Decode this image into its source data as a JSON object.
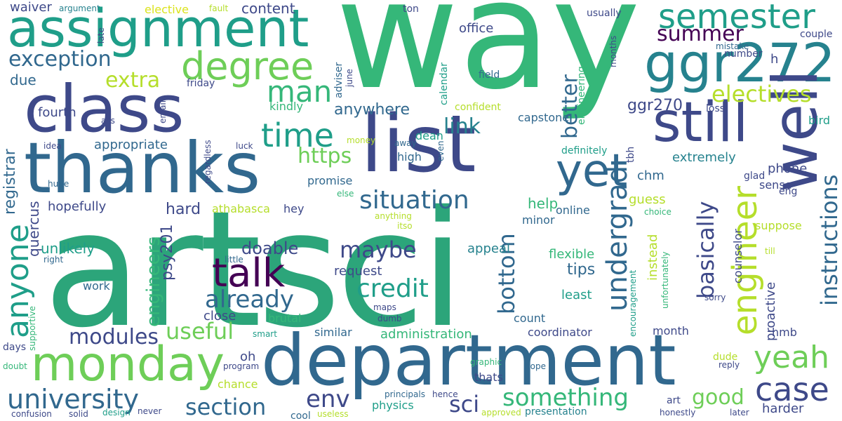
{
  "palette": {
    "dark_purple": "#440154",
    "indigo": "#3e4989",
    "blue": "#31688e",
    "teal": "#26828e",
    "green_teal": "#1f9e89",
    "green": "#35b779",
    "light_green": "#6ece58",
    "lime": "#b5de2b",
    "yellow": "#dbe31d"
  },
  "words": [
    {
      "text": "artsci",
      "color": "#2ca57a"
    },
    {
      "text": "way",
      "color": "#35b779"
    },
    {
      "text": "department",
      "color": "#31688e"
    },
    {
      "text": "thanks",
      "color": "#31688e"
    },
    {
      "text": "list",
      "color": "#3e4989"
    },
    {
      "text": "class",
      "color": "#3e4989"
    },
    {
      "text": "assignment",
      "color": "#1f9e89"
    },
    {
      "text": "ggr272",
      "color": "#26828e"
    },
    {
      "text": "still",
      "color": "#3e4989"
    },
    {
      "text": "monday",
      "color": "#6ece58"
    },
    {
      "text": "well",
      "color": "#3e4989"
    },
    {
      "text": "degree",
      "color": "#6ece58"
    },
    {
      "text": "talk",
      "color": "#440154"
    },
    {
      "text": "yet",
      "color": "#31688e"
    },
    {
      "text": "semester",
      "color": "#1f9e89"
    },
    {
      "text": "anyone",
      "color": "#1f9e89"
    },
    {
      "text": "engineer",
      "color": "#b5de2b"
    },
    {
      "text": "time",
      "color": "#1f9e89"
    },
    {
      "text": "man",
      "color": "#35b779"
    },
    {
      "text": "university",
      "color": "#31688e"
    },
    {
      "text": "exception",
      "color": "#31688e"
    },
    {
      "text": "case",
      "color": "#3e4989"
    },
    {
      "text": "yeah",
      "color": "#6ece58"
    },
    {
      "text": "summer",
      "color": "#440154"
    },
    {
      "text": "situation",
      "color": "#31688e"
    },
    {
      "text": "maybe",
      "color": "#3e4989"
    },
    {
      "text": "section",
      "color": "#31688e"
    },
    {
      "text": "useful",
      "color": "#6ece58"
    },
    {
      "text": "undergrad",
      "color": "#31688e"
    },
    {
      "text": "credit",
      "color": "#1f9e89"
    },
    {
      "text": "already",
      "color": "#31688e"
    },
    {
      "text": "modules",
      "color": "#3e4989"
    },
    {
      "text": "something",
      "color": "#35b779"
    },
    {
      "text": "sci",
      "color": "#3e4989"
    },
    {
      "text": "env",
      "color": "#3e4989"
    },
    {
      "text": "good",
      "color": "#6ece58"
    },
    {
      "text": "instructions",
      "color": "#31688e"
    },
    {
      "text": "electives",
      "color": "#b5de2b"
    },
    {
      "text": "extra",
      "color": "#b5de2b"
    },
    {
      "text": "better",
      "color": "#31688e"
    },
    {
      "text": "https",
      "color": "#6ece58"
    },
    {
      "text": "bottom",
      "color": "#31688e"
    },
    {
      "text": "basically",
      "color": "#3e4989"
    },
    {
      "text": "link",
      "color": "#26828e"
    },
    {
      "text": "anywhere",
      "color": "#31688e"
    },
    {
      "text": "ggr270",
      "color": "#3e4989"
    },
    {
      "text": "engineers",
      "color": "#35b779"
    },
    {
      "text": "psy201",
      "color": "#3e4989"
    },
    {
      "text": "office",
      "color": "#3e4989"
    },
    {
      "text": "content",
      "color": "#3e4989"
    },
    {
      "text": "due",
      "color": "#31688e"
    },
    {
      "text": "registrar",
      "color": "#31688e"
    },
    {
      "text": "fourth",
      "color": "#3e4989"
    },
    {
      "text": "appropriate",
      "color": "#31688e"
    },
    {
      "text": "waiver",
      "color": "#3e4989"
    },
    {
      "text": "hopefully",
      "color": "#3e4989"
    },
    {
      "text": "quercus",
      "color": "#3e4989"
    },
    {
      "text": "unlikely",
      "color": "#1f9e89"
    },
    {
      "text": "hard",
      "color": "#3e4989"
    },
    {
      "text": "athabasca",
      "color": "#b5de2b"
    },
    {
      "text": "hey",
      "color": "#3e4989"
    },
    {
      "text": "doable",
      "color": "#3e4989"
    },
    {
      "text": "promise",
      "color": "#31688e"
    },
    {
      "text": "help",
      "color": "#35b779"
    },
    {
      "text": "minor",
      "color": "#31688e"
    },
    {
      "text": "online",
      "color": "#31688e"
    },
    {
      "text": "guess",
      "color": "#b5de2b"
    },
    {
      "text": "phone",
      "color": "#3e4989"
    },
    {
      "text": "extremely",
      "color": "#26828e"
    },
    {
      "text": "chm",
      "color": "#31688e"
    },
    {
      "text": "tips",
      "color": "#31688e"
    },
    {
      "text": "appeal",
      "color": "#26828e"
    },
    {
      "text": "request",
      "color": "#3e4989"
    },
    {
      "text": "flexible",
      "color": "#35b779"
    },
    {
      "text": "least",
      "color": "#1f9e89"
    },
    {
      "text": "close",
      "color": "#3e4989"
    },
    {
      "text": "brutal",
      "color": "#35b779"
    },
    {
      "text": "count",
      "color": "#31688e"
    },
    {
      "text": "administration",
      "color": "#35b779"
    },
    {
      "text": "coordinator",
      "color": "#3e4989"
    },
    {
      "text": "similar",
      "color": "#31688e"
    },
    {
      "text": "month",
      "color": "#3e4989"
    },
    {
      "text": "work",
      "color": "#31688e"
    },
    {
      "text": "oh",
      "color": "#3e4989"
    },
    {
      "text": "physics",
      "color": "#1f9e89"
    },
    {
      "text": "thats",
      "color": "#3e4989"
    },
    {
      "text": "chance",
      "color": "#b5de2b"
    },
    {
      "text": "harder",
      "color": "#3e4989"
    },
    {
      "text": "hmb",
      "color": "#3e4989"
    },
    {
      "text": "proactive",
      "color": "#3e4989"
    },
    {
      "text": "counselor",
      "color": "#3e4989"
    },
    {
      "text": "suppose",
      "color": "#b5de2b"
    },
    {
      "text": "sense",
      "color": "#3e4989"
    },
    {
      "text": "eng",
      "color": "#3e4989"
    },
    {
      "text": "capstone",
      "color": "#31688e"
    },
    {
      "text": "dean",
      "color": "#1f9e89"
    },
    {
      "text": "high",
      "color": "#31688e"
    },
    {
      "text": "instead",
      "color": "#b5de2b"
    },
    {
      "text": "kindly",
      "color": "#35b779"
    },
    {
      "text": "h",
      "color": "#3e4989"
    },
    {
      "text": "number",
      "color": "#3e4989"
    },
    {
      "text": "couple",
      "color": "#3e4989"
    },
    {
      "text": "mistake",
      "color": "#31688e"
    },
    {
      "text": "bird",
      "color": "#1f9e89"
    },
    {
      "text": "loss",
      "color": "#3e4989"
    },
    {
      "text": "glad",
      "color": "#3e4989"
    },
    {
      "text": "tbh",
      "color": "#3e4989"
    },
    {
      "text": "definitely",
      "color": "#1f9e89"
    },
    {
      "text": "field",
      "color": "#31688e"
    },
    {
      "text": "confident",
      "color": "#b5de2b"
    },
    {
      "text": "usually",
      "color": "#3e4989"
    },
    {
      "text": "ton",
      "color": "#3e4989"
    },
    {
      "text": "months",
      "color": "#3e4989"
    },
    {
      "text": "engineering",
      "color": "#35b779"
    },
    {
      "text": "calendar",
      "color": "#1f9e89"
    },
    {
      "text": "adviser",
      "color": "#31688e"
    },
    {
      "text": "june",
      "color": "#3e4989"
    },
    {
      "text": "elective",
      "color": "#dbe31d"
    },
    {
      "text": "fault",
      "color": "#b5de2b"
    },
    {
      "text": "argument",
      "color": "#26828e"
    },
    {
      "text": "late",
      "color": "#3e4989"
    },
    {
      "text": "friday",
      "color": "#3e4989"
    },
    {
      "text": "email",
      "color": "#3e4989"
    },
    {
      "text": "ass",
      "color": "#3e4989"
    },
    {
      "text": "idea",
      "color": "#3e4989"
    },
    {
      "text": "luck",
      "color": "#3e4989"
    },
    {
      "text": "regardless",
      "color": "#3e4989"
    },
    {
      "text": "money",
      "color": "#b5de2b"
    },
    {
      "text": "away",
      "color": "#31688e"
    },
    {
      "text": "even",
      "color": "#31688e"
    },
    {
      "text": "huge",
      "color": "#31688e"
    },
    {
      "text": "right",
      "color": "#31688e"
    },
    {
      "text": "else",
      "color": "#35b779"
    },
    {
      "text": "anything",
      "color": "#b5de2b"
    },
    {
      "text": "itso",
      "color": "#b5de2b"
    },
    {
      "text": "little",
      "color": "#31688e"
    },
    {
      "text": "choice",
      "color": "#35b779"
    },
    {
      "text": "till",
      "color": "#b5de2b"
    },
    {
      "text": "unfortunately",
      "color": "#35b779"
    },
    {
      "text": "encouragement",
      "color": "#1f9e89"
    },
    {
      "text": "sorry",
      "color": "#3e4989"
    },
    {
      "text": "argument",
      "color": "#26828e"
    },
    {
      "text": "days",
      "color": "#3e4989"
    },
    {
      "text": "supportive",
      "color": "#35b779"
    },
    {
      "text": "smart",
      "color": "#1f9e89"
    },
    {
      "text": "maps",
      "color": "#3e4989"
    },
    {
      "text": "dumb",
      "color": "#3e4989"
    },
    {
      "text": "doubt",
      "color": "#35b779"
    },
    {
      "text": "program",
      "color": "#3e4989"
    },
    {
      "text": "graphic",
      "color": "#35b779"
    },
    {
      "text": "hope",
      "color": "#31688e"
    },
    {
      "text": "dude",
      "color": "#b5de2b"
    },
    {
      "text": "reply",
      "color": "#3e4989"
    },
    {
      "text": "art",
      "color": "#3e4989"
    },
    {
      "text": "confusion",
      "color": "#3e4989"
    },
    {
      "text": "solid",
      "color": "#3e4989"
    },
    {
      "text": "design",
      "color": "#1f9e89"
    },
    {
      "text": "never",
      "color": "#3e4989"
    },
    {
      "text": "cool",
      "color": "#31688e"
    },
    {
      "text": "useless",
      "color": "#b5de2b"
    },
    {
      "text": "principals",
      "color": "#31688e"
    },
    {
      "text": "hence",
      "color": "#3e4989"
    },
    {
      "text": "approved",
      "color": "#b5de2b"
    },
    {
      "text": "presentation",
      "color": "#26828e"
    },
    {
      "text": "honestly",
      "color": "#3e4989"
    },
    {
      "text": "later",
      "color": "#3e4989"
    }
  ]
}
